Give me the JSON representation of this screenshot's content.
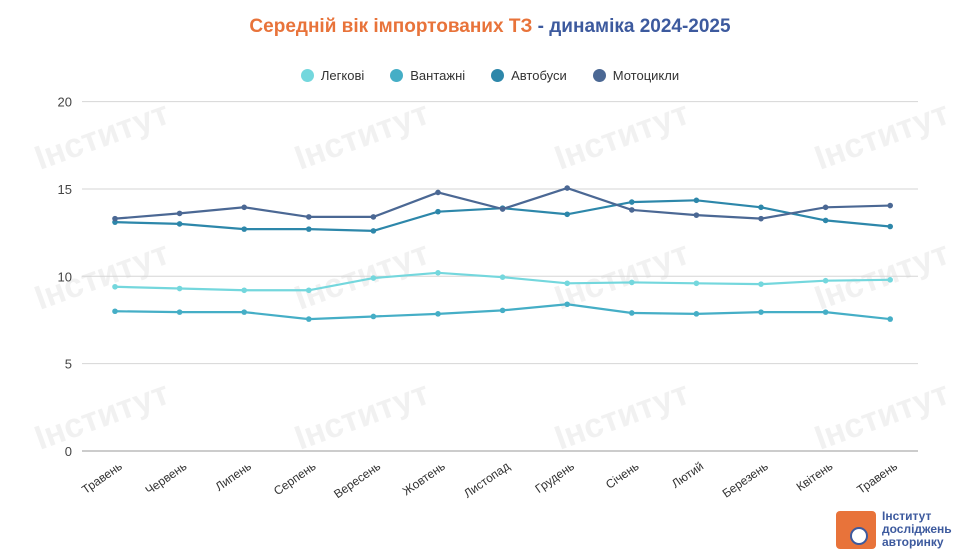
{
  "chart_data": {
    "type": "line",
    "title_part1": "Середній вік імпортованих ТЗ",
    "title_part2": " - динаміка 2024-2025",
    "categories": [
      "Травень",
      "Червень",
      "Липень",
      "Серпень",
      "Вересень",
      "Жовтень",
      "Листопад",
      "Грудень",
      "Січень",
      "Лютий",
      "Березень",
      "Квітень",
      "Травень"
    ],
    "ylim": [
      0,
      20
    ],
    "yticks": [
      0,
      5,
      10,
      15,
      20
    ],
    "grid": true,
    "legend_position": "top",
    "series": [
      {
        "name": "Легкові",
        "color": "#74d7dd",
        "values": [
          9.4,
          9.3,
          9.2,
          9.2,
          9.9,
          10.2,
          9.95,
          9.6,
          9.65,
          9.6,
          9.55,
          9.75,
          9.8
        ]
      },
      {
        "name": "Вантажні",
        "color": "#45aec6",
        "values": [
          8.0,
          7.95,
          7.95,
          7.55,
          7.7,
          7.85,
          8.05,
          8.4,
          7.9,
          7.85,
          7.95,
          7.95,
          7.55
        ]
      },
      {
        "name": "Автобуси",
        "color": "#2d87aa",
        "values": [
          13.1,
          13.0,
          12.7,
          12.7,
          12.6,
          13.7,
          13.9,
          13.55,
          14.25,
          14.35,
          13.95,
          13.2,
          12.85
        ]
      },
      {
        "name": "Мотоцикли",
        "color": "#4b6894",
        "values": [
          13.3,
          13.6,
          13.95,
          13.4,
          13.4,
          14.8,
          13.85,
          15.05,
          13.8,
          13.5,
          13.3,
          13.95,
          14.05
        ]
      }
    ]
  },
  "logo": {
    "line1": "Інститут",
    "line2": "досліджень",
    "line3": "авторинку"
  },
  "watermark": "Інститут досліджень авторинку"
}
